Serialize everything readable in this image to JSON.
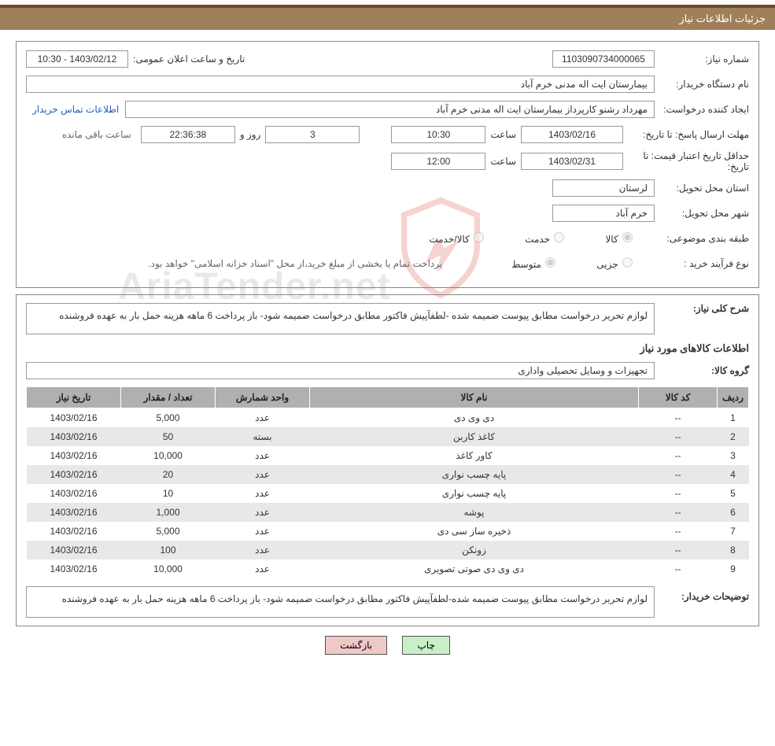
{
  "header": {
    "title": "جزئیات اطلاعات نیاز"
  },
  "fields": {
    "need_no_label": "شماره نیاز:",
    "need_no": "1103090734000065",
    "announce_label": "تاریخ و ساعت اعلان عمومی:",
    "announce_value": "1403/02/12 - 10:30",
    "buyer_org_label": "نام دستگاه خریدار:",
    "buyer_org": "بیمارستان ایت اله مدنی خرم آباد",
    "requester_label": "ایجاد کننده درخواست:",
    "requester": "مهرداد رشنو کارپرداز بیمارستان ایت اله مدنی خرم آباد",
    "buyer_contact_link": "اطلاعات تماس خریدار",
    "reply_deadline_label": "مهلت ارسال پاسخ: تا تاریخ:",
    "reply_deadline_date": "1403/02/16",
    "hour_word": "ساعت",
    "reply_deadline_time": "10:30",
    "days_remain": "3",
    "day_and_word": "روز و",
    "time_remain": "22:36:38",
    "remain_suffix": "ساعت باقی مانده",
    "price_valid_label": "حداقل تاریخ اعتبار قیمت: تا تاریخ:",
    "price_valid_date": "1403/02/31",
    "price_valid_time": "12:00",
    "province_label": "استان محل تحویل:",
    "province": "لرستان",
    "city_label": "شهر محل تحویل:",
    "city": "خرم آباد",
    "cat_label": "طبقه بندی موضوعی:",
    "cat_goods": "کالا",
    "cat_service": "خدمت",
    "cat_goods_service": "کالا/خدمت",
    "proc_label": "نوع فرآیند خرید :",
    "proc_partial": "جزیی",
    "proc_medium": "متوسط",
    "proc_note": "پرداخت تمام یا بخشی از مبلغ خرید،از محل \"اسناد خزانه اسلامی\" خواهد بود.",
    "general_desc_label": "شرح کلی نیاز:",
    "general_desc": "لوازم تحریر درخواست مطابق پیوست ضمیمه شده -لطفآپیش فاکتور مطابق درخواست ضمیمه شود- باز پرداخت 6 ماهه هزینه حمل بار به عهده فروشنده",
    "items_title": "اطلاعات کالاهای مورد نیاز",
    "group_label": "گروه کالا:",
    "group_value": "تجهیزات و وسایل تحصیلی واداری",
    "buyer_notes_label": "توضیحات خریدار:",
    "buyer_notes": "لوازم تحریر درخواست مطابق پیوست ضمیمه شده-لطفآپیش فاکتور مطابق درخواست ضمیمه شود- باز پرداخت 6 ماهه هزینه حمل بار به عهده فروشنده"
  },
  "table": {
    "headers": {
      "idx": "ردیف",
      "code": "کد کالا",
      "name": "نام کالا",
      "unit": "واحد شمارش",
      "qty": "تعداد / مقدار",
      "date": "تاریخ نیاز"
    },
    "rows": [
      {
        "idx": "1",
        "code": "--",
        "name": "دی وی دی",
        "unit": "عدد",
        "qty": "5,000",
        "date": "1403/02/16"
      },
      {
        "idx": "2",
        "code": "--",
        "name": "کاغذ کاربن",
        "unit": "بسته",
        "qty": "50",
        "date": "1403/02/16"
      },
      {
        "idx": "3",
        "code": "--",
        "name": "کاور کاغذ",
        "unit": "عدد",
        "qty": "10,000",
        "date": "1403/02/16"
      },
      {
        "idx": "4",
        "code": "--",
        "name": "پایه چسب نواری",
        "unit": "عدد",
        "qty": "20",
        "date": "1403/02/16"
      },
      {
        "idx": "5",
        "code": "--",
        "name": "پایه چسب نواری",
        "unit": "عدد",
        "qty": "10",
        "date": "1403/02/16"
      },
      {
        "idx": "6",
        "code": "--",
        "name": "پوشه",
        "unit": "عدد",
        "qty": "1,000",
        "date": "1403/02/16"
      },
      {
        "idx": "7",
        "code": "--",
        "name": "ذخیره ساز سی دی",
        "unit": "عدد",
        "qty": "5,000",
        "date": "1403/02/16"
      },
      {
        "idx": "8",
        "code": "--",
        "name": "زونکن",
        "unit": "عدد",
        "qty": "100",
        "date": "1403/02/16"
      },
      {
        "idx": "9",
        "code": "--",
        "name": "دی وی دی صوتی تصویری",
        "unit": "عدد",
        "qty": "10,000",
        "date": "1403/02/16"
      }
    ]
  },
  "buttons": {
    "print": "چاپ",
    "back": "بازگشت"
  },
  "colors": {
    "header_bg": "#a0805a",
    "header_border": "#6a4a2a",
    "panel_border": "#888888",
    "th_bg": "#b0b0b0",
    "row_even_bg": "#e8e8e8",
    "link": "#2060c0",
    "btn_print_bg": "#c8f0c8",
    "btn_back_bg": "#f0c8c8",
    "watermark_red": "#d43a2a",
    "watermark_gray": "#999999"
  },
  "watermark": {
    "text": "AriaTender.net"
  }
}
